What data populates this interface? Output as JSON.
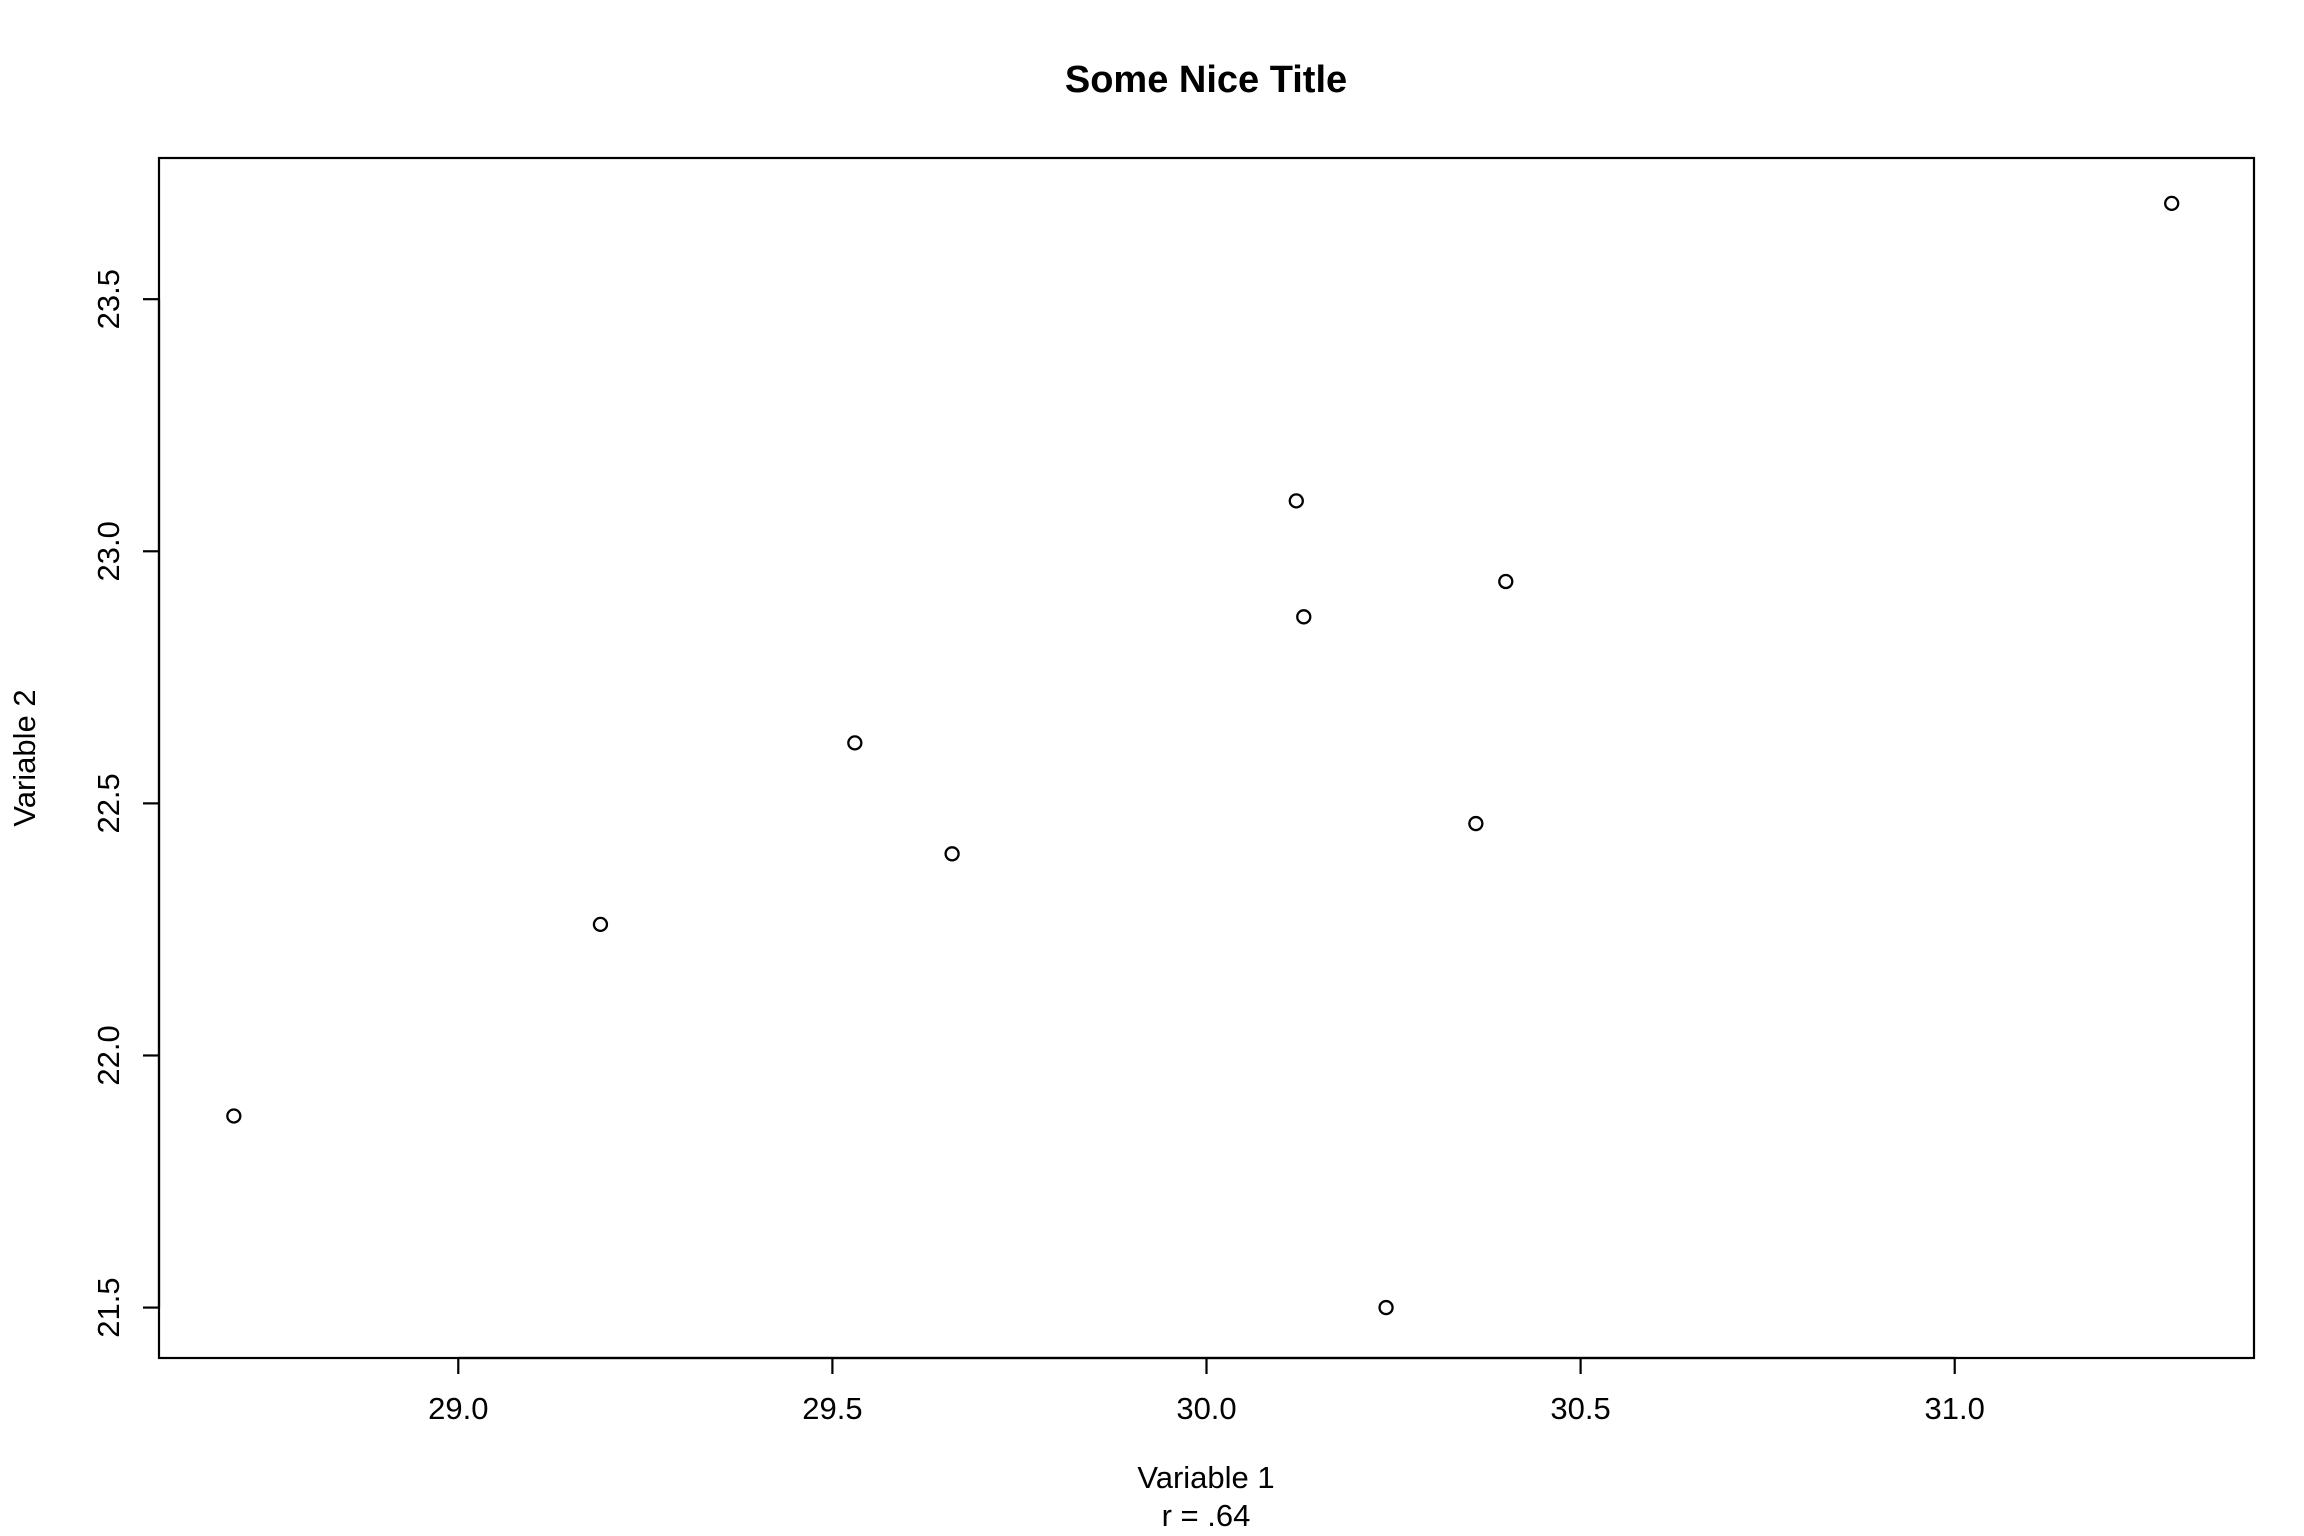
{
  "chart_data": {
    "type": "scatter",
    "title": "Some Nice Title",
    "xlabel": "Variable 1",
    "xlabel_sub": "r = .64",
    "ylabel": "Variable 2",
    "xlim": [
      28.6,
      31.4
    ],
    "ylim": [
      21.4,
      23.78
    ],
    "x_ticks": [
      29.0,
      29.5,
      30.0,
      30.5,
      31.0
    ],
    "x_tick_labels": [
      "29.0",
      "29.5",
      "30.0",
      "30.5",
      "31.0"
    ],
    "y_ticks": [
      21.5,
      22.0,
      22.5,
      23.0,
      23.5
    ],
    "y_tick_labels": [
      "21.5",
      "22.0",
      "22.5",
      "23.0",
      "23.5"
    ],
    "grid": false,
    "legend": "none",
    "points": [
      {
        "x": 28.7,
        "y": 21.88
      },
      {
        "x": 29.19,
        "y": 22.26
      },
      {
        "x": 29.53,
        "y": 22.62
      },
      {
        "x": 29.66,
        "y": 22.4
      },
      {
        "x": 30.12,
        "y": 23.1
      },
      {
        "x": 30.13,
        "y": 22.87
      },
      {
        "x": 30.24,
        "y": 21.5
      },
      {
        "x": 30.36,
        "y": 22.46
      },
      {
        "x": 30.4,
        "y": 22.94
      },
      {
        "x": 31.29,
        "y": 23.69
      }
    ]
  }
}
